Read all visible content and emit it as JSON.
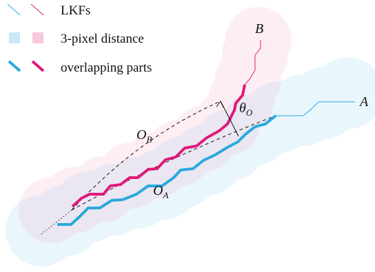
{
  "legend": {
    "lkfs_label": "LKFs",
    "distance_label": "3-pixel distance",
    "overlap_label": "overlapping parts"
  },
  "labels": {
    "curve_b": "B",
    "curve_a": "A",
    "curve_ob_main": "O",
    "curve_ob_sub": "B",
    "curve_oa_main": "O",
    "curve_oa_sub": "A",
    "angle_main": "θ",
    "angle_sub": "O"
  },
  "colors": {
    "curve_a": "#29a9dd",
    "curve_b": "#e0197a",
    "disk_a": "#9fd8f2",
    "disk_b": "#f7aecb",
    "dashed": "#111111"
  }
}
